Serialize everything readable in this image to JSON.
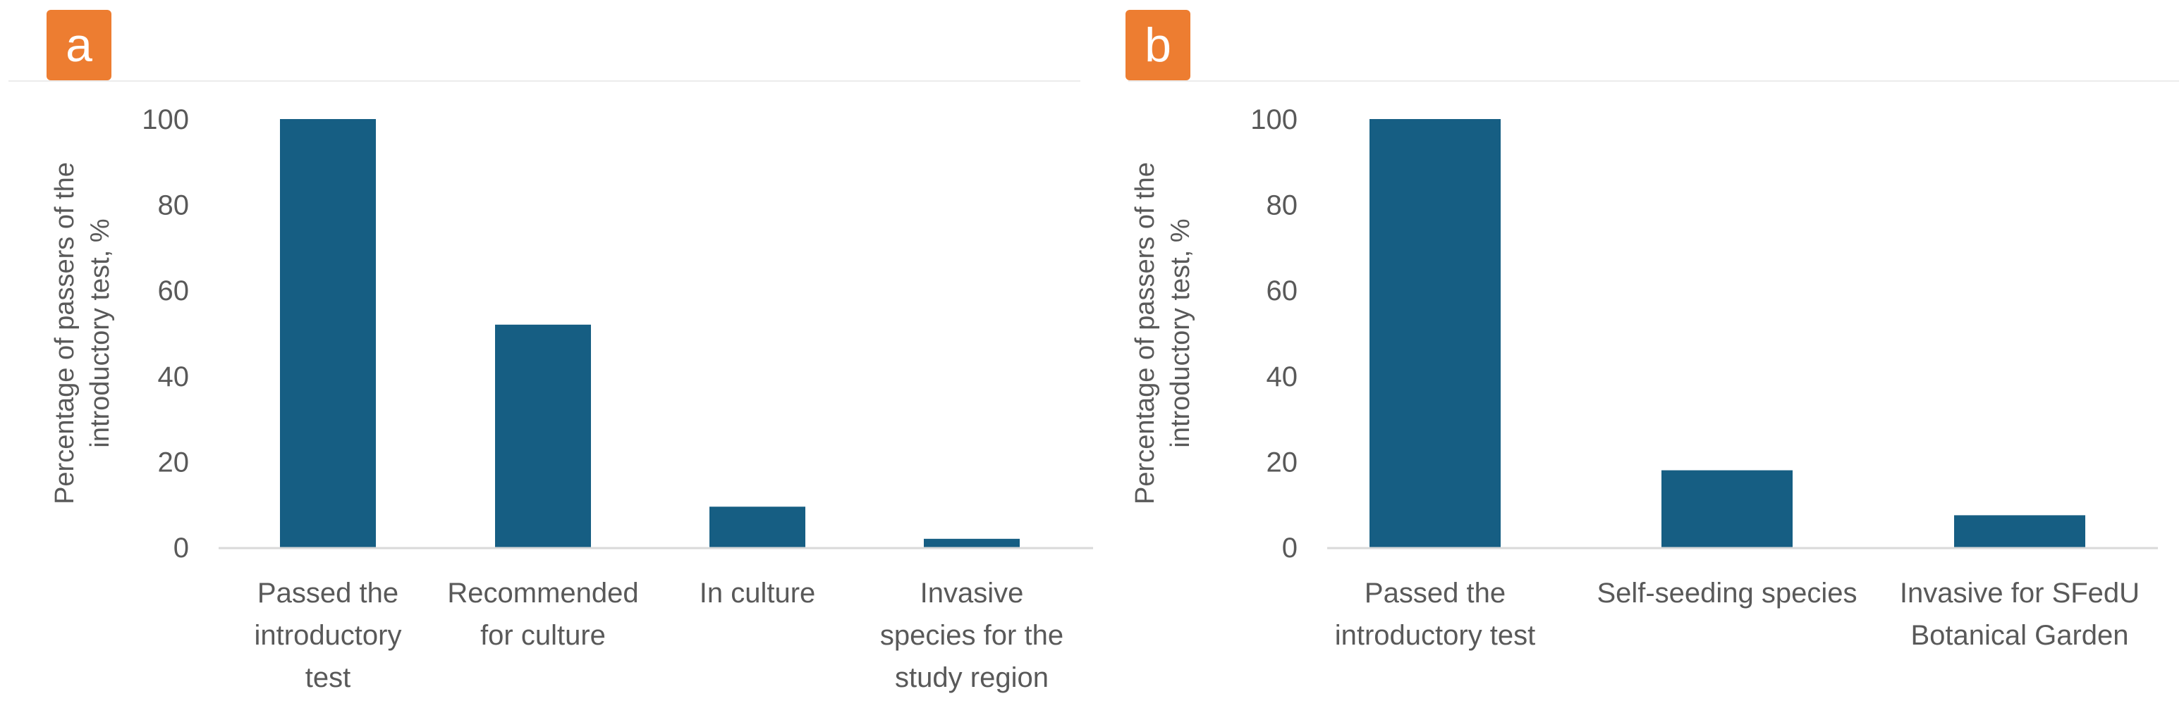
{
  "chart_data": [
    {
      "panel_label": "a",
      "type": "bar",
      "title": "",
      "xlabel": "",
      "ylabel_lines": [
        "Percentage of passers of the",
        "introductory test, %"
      ],
      "ylim": [
        0,
        100
      ],
      "yticks": [
        "0",
        "20",
        "40",
        "60",
        "80",
        "100"
      ],
      "categories": [
        [
          "Passed the",
          "introductory",
          "test"
        ],
        [
          "Recommended",
          "for culture"
        ],
        [
          "In culture"
        ],
        [
          "Invasive",
          "species for the",
          "study region"
        ]
      ],
      "values": [
        100,
        52,
        9.5,
        2
      ],
      "bar_color": "#165e83"
    },
    {
      "panel_label": "b",
      "type": "bar",
      "title": "",
      "xlabel": "",
      "ylabel_lines": [
        "Percentage of passers of the",
        "introductory test, %"
      ],
      "ylim": [
        0,
        100
      ],
      "yticks": [
        "0",
        "20",
        "40",
        "60",
        "80",
        "100"
      ],
      "categories": [
        [
          "Passed the",
          "introductory test"
        ],
        [
          "Self-seeding species"
        ],
        [
          "Invasive for SFedU",
          "Botanical Garden"
        ]
      ],
      "values": [
        100,
        18,
        7.5
      ],
      "bar_color": "#165e83"
    }
  ],
  "colors": {
    "badge": "#ed7d31",
    "axis": "#d9d9d9",
    "text": "#595959"
  }
}
